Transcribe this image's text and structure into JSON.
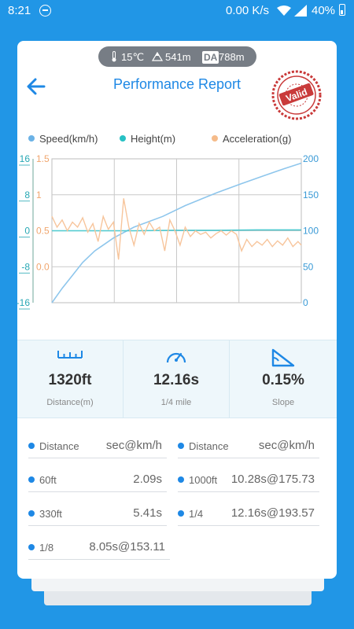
{
  "status_bar": {
    "time": "8:21",
    "net_speed": "0.00 K/s",
    "battery": "40%"
  },
  "conditions": {
    "temperature": "15℃",
    "altitude": "541m",
    "da_badge": "DA",
    "density_altitude": "788m"
  },
  "header": {
    "title": "Performance Report",
    "stamp_text": "Valid"
  },
  "legend": [
    {
      "label": "Speed(km/h)",
      "color": "#6bb2e6"
    },
    {
      "label": "Height(m)",
      "color": "#27c1c4"
    },
    {
      "label": "Acceleration(g)",
      "color": "#f5bb8a"
    }
  ],
  "chart_data": {
    "type": "line",
    "left_axis_height": {
      "ticks": [
        "16",
        "8",
        "0",
        "-8",
        "-16"
      ],
      "range": [
        -16,
        16
      ],
      "color": "#27a8b4"
    },
    "left_axis_accel": {
      "ticks": [
        "1.5",
        "1",
        "0.5",
        "0.0"
      ],
      "range": [
        -0.5,
        1.5
      ],
      "color": "#f0a66e"
    },
    "right_axis_speed": {
      "ticks": [
        "200",
        "150",
        "100",
        "50",
        "0"
      ],
      "range": [
        0,
        200
      ],
      "color": "#3a9ad6"
    },
    "grid": true,
    "series": [
      {
        "name": "Speed(km/h)",
        "axis": "right",
        "color": "#8ec6ec",
        "x": [
          0,
          0.5,
          1,
          1.5,
          2.09,
          3,
          4,
          5.41,
          6.5,
          8.05,
          9.2,
          10.28,
          11.3,
          12.16
        ],
        "values": [
          0,
          20,
          38,
          56,
          72,
          90,
          105,
          120,
          135,
          153,
          165,
          176,
          186,
          194
        ]
      },
      {
        "name": "Height(m)",
        "axis": "height",
        "color": "#4cc9cf",
        "x": [
          0,
          2,
          4,
          6,
          8,
          10,
          12.16
        ],
        "values": [
          0,
          0,
          0,
          0.1,
          0.1,
          0.2,
          0.2
        ]
      },
      {
        "name": "Acceleration(g)",
        "axis": "accel",
        "color": "#f7c59c",
        "x": [
          0,
          0.25,
          0.5,
          0.75,
          1,
          1.25,
          1.5,
          1.75,
          2,
          2.25,
          2.5,
          2.75,
          3,
          3.25,
          3.5,
          3.75,
          4,
          4.25,
          4.5,
          4.75,
          5,
          5.25,
          5.5,
          5.75,
          6,
          6.25,
          6.5,
          6.75,
          7,
          7.25,
          7.5,
          7.75,
          8,
          8.25,
          8.5,
          8.75,
          9,
          9.25,
          9.5,
          9.75,
          10,
          10.25,
          10.5,
          10.75,
          11,
          11.25,
          11.5,
          11.75,
          12,
          12.16
        ],
        "values": [
          0.7,
          0.55,
          0.65,
          0.5,
          0.62,
          0.55,
          0.68,
          0.48,
          0.6,
          0.35,
          0.7,
          0.52,
          0.62,
          0.1,
          0.95,
          0.55,
          0.3,
          0.6,
          0.45,
          0.62,
          0.5,
          0.55,
          0.22,
          0.65,
          0.5,
          0.3,
          0.55,
          0.42,
          0.5,
          0.45,
          0.48,
          0.4,
          0.46,
          0.5,
          0.44,
          0.5,
          0.45,
          0.22,
          0.38,
          0.28,
          0.35,
          0.3,
          0.38,
          0.28,
          0.36,
          0.3,
          0.4,
          0.28,
          0.35,
          0.3
        ]
      }
    ]
  },
  "stats": [
    {
      "value": "1320ft",
      "label": "Distance(m)"
    },
    {
      "value": "12.16s",
      "label": "1/4 mile"
    },
    {
      "value": "0.15%",
      "label": "Slope"
    }
  ],
  "table": {
    "header": [
      {
        "key": "Distance",
        "value": "sec@km/h"
      },
      {
        "key": "Distance",
        "value": "sec@km/h"
      }
    ],
    "rows": [
      {
        "key": "60ft",
        "value": "2.09s"
      },
      {
        "key": "1000ft",
        "value": "10.28s@175.73"
      },
      {
        "key": "330ft",
        "value": "5.41s"
      },
      {
        "key": "1/4",
        "value": "12.16s@193.57"
      },
      {
        "key": "1/8",
        "value": "8.05s@153.11"
      }
    ]
  }
}
